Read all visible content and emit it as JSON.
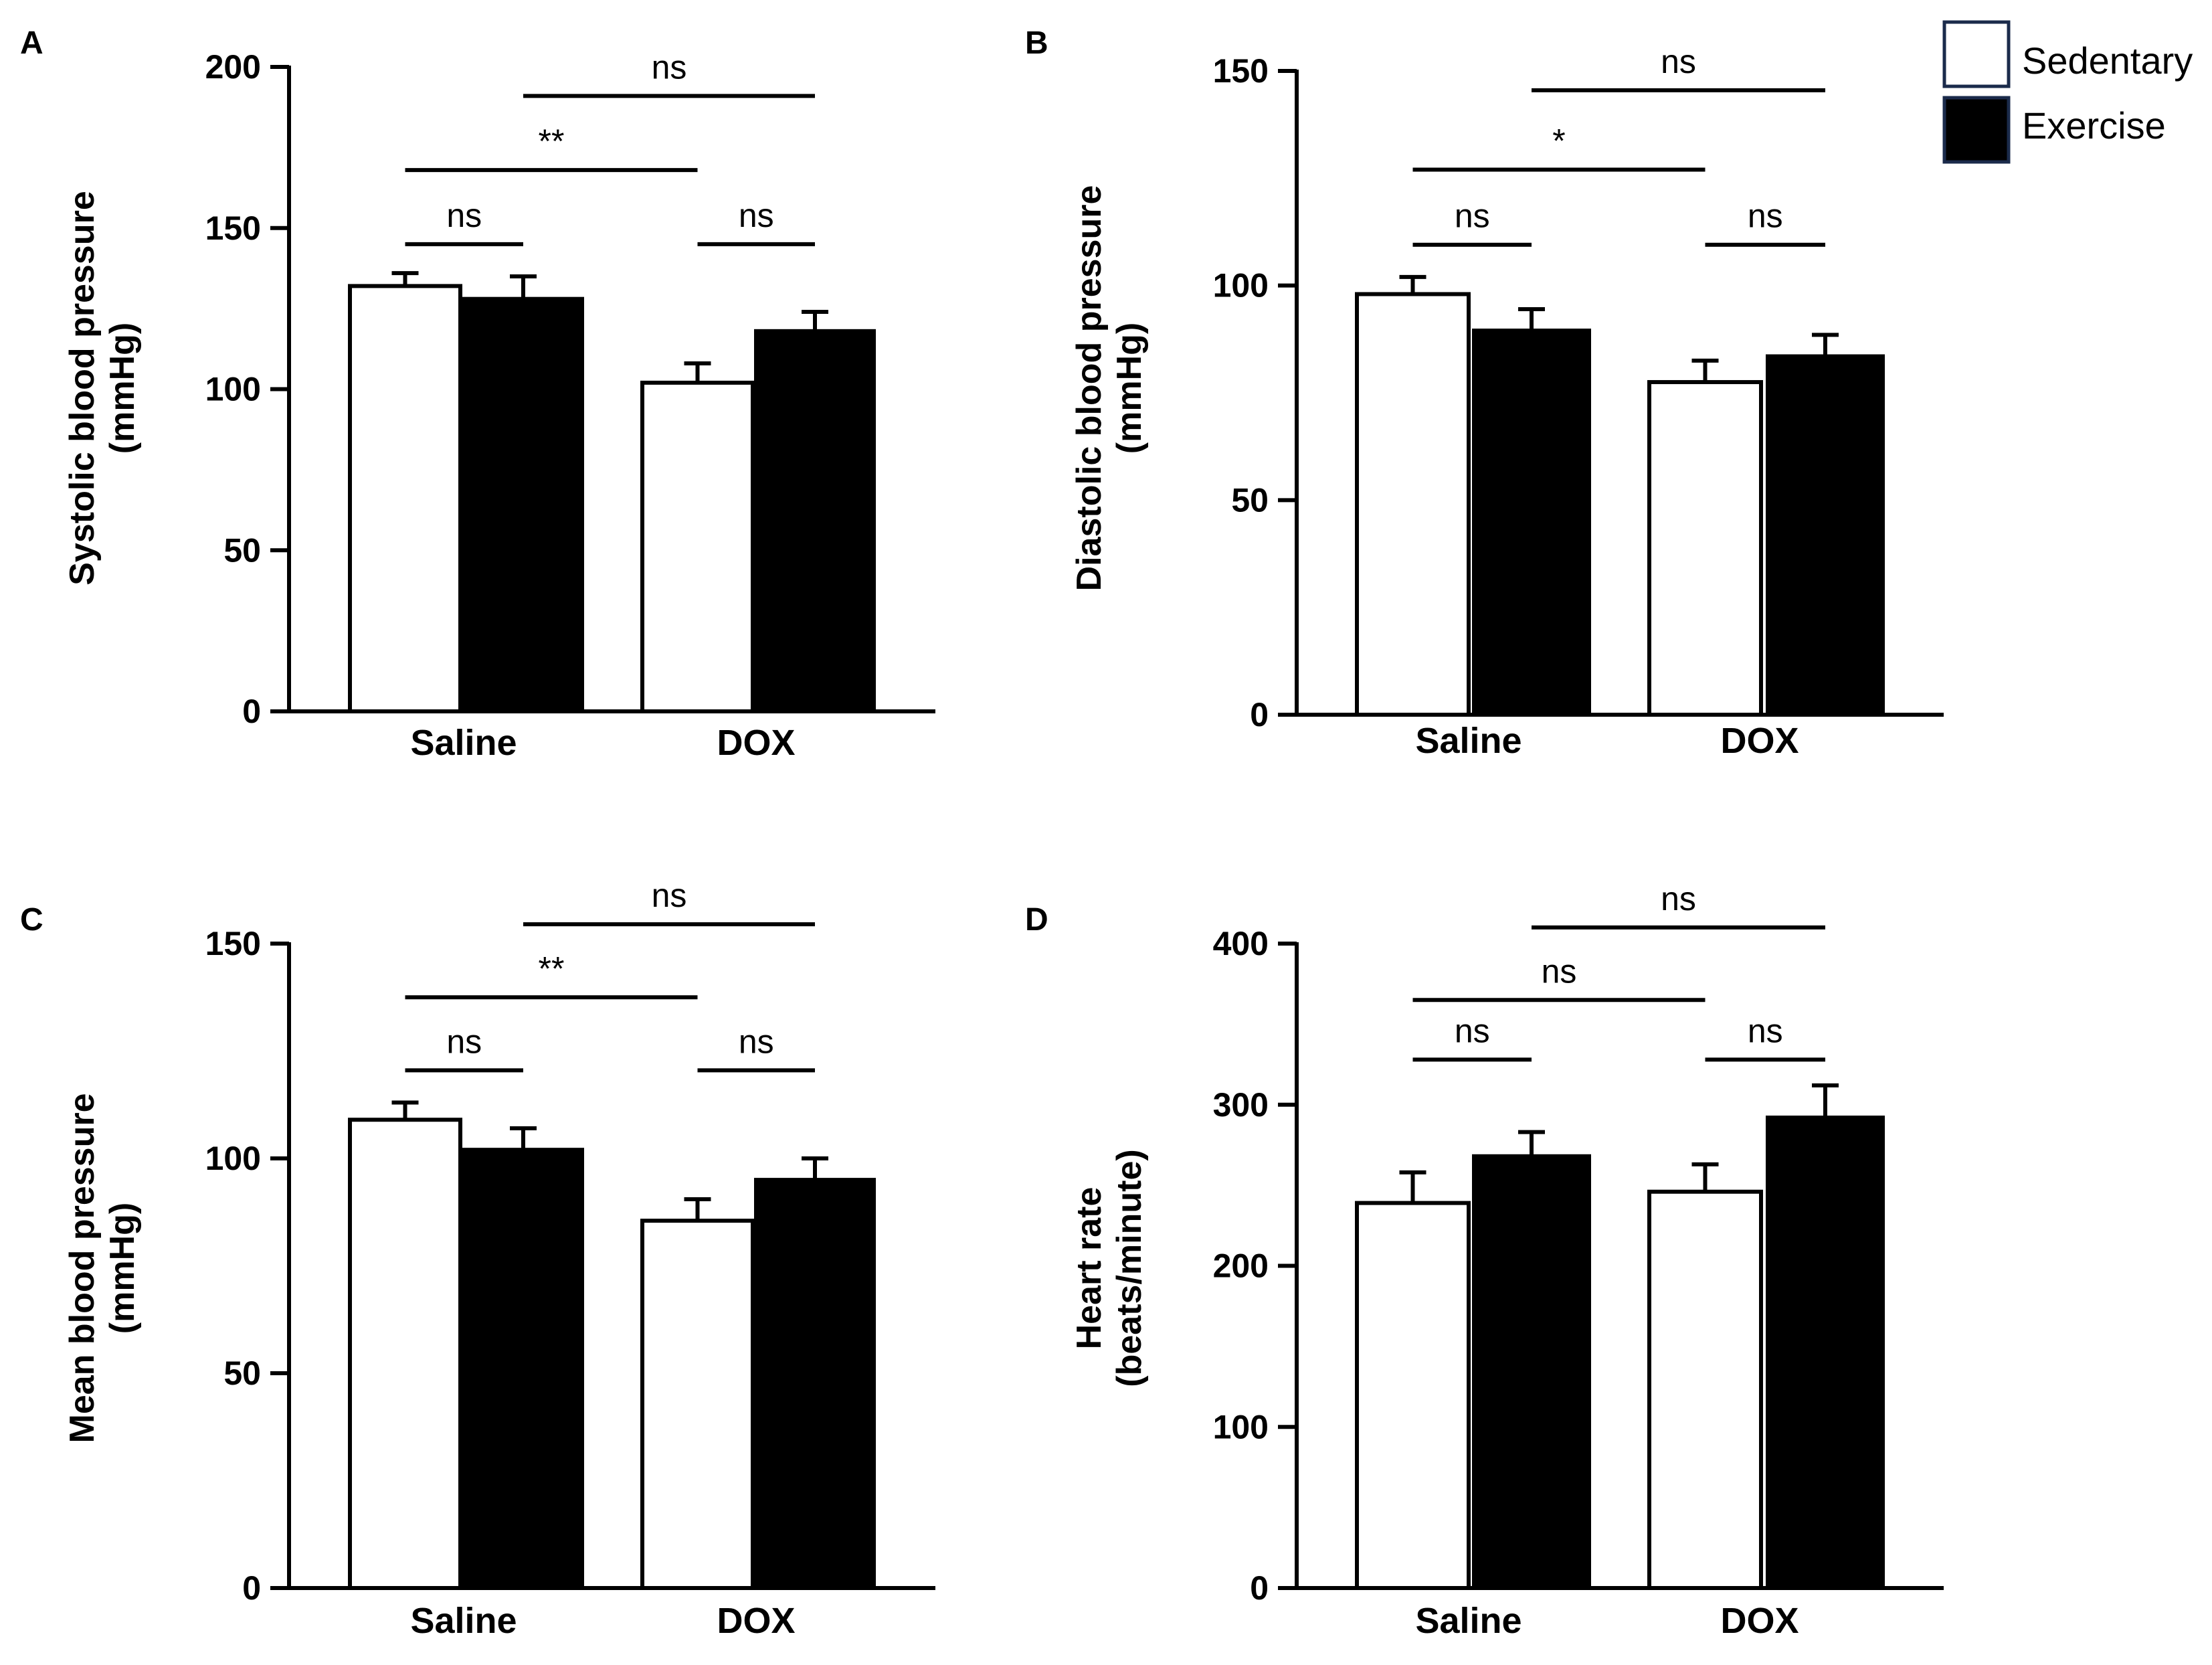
{
  "legend": {
    "entries": [
      {
        "label": "Sedentary",
        "fill": "#ffffff",
        "stroke": "#1b2b4b"
      },
      {
        "label": "Exercise",
        "fill": "#000000",
        "stroke": "#1b2b4b"
      }
    ]
  },
  "colors": {
    "sedentary": "#ffffff",
    "exercise": "#000000",
    "axis": "#000000"
  },
  "chart_data": [
    {
      "type": "bar",
      "panel": "A",
      "ylabel": [
        "Systolic blood pressure",
        "(mmHg)"
      ],
      "categories": [
        "Saline",
        "DOX"
      ],
      "ylim": [
        0,
        200
      ],
      "yticks": [
        0,
        50,
        100,
        150,
        200
      ],
      "series": [
        {
          "name": "Sedentary",
          "values": [
            132,
            102
          ],
          "errors": [
            4,
            6
          ]
        },
        {
          "name": "Exercise",
          "values": [
            128,
            118
          ],
          "errors": [
            7,
            6
          ]
        }
      ],
      "significance": [
        {
          "from": "Saline-Sedentary",
          "to": "Saline-Exercise",
          "label": "ns",
          "level": 145
        },
        {
          "from": "DOX-Sedentary",
          "to": "DOX-Exercise",
          "label": "ns",
          "level": 145
        },
        {
          "from": "Saline-Sedentary",
          "to": "DOX-Sedentary",
          "label": "**",
          "level": 168
        },
        {
          "from": "Saline-Exercise",
          "to": "DOX-Exercise",
          "label": "ns",
          "level": 191
        }
      ]
    },
    {
      "type": "bar",
      "panel": "B",
      "ylabel": [
        "Diastolic blood pressure",
        "(mmHg)"
      ],
      "categories": [
        "Saline",
        "DOX"
      ],
      "ylim": [
        0,
        150
      ],
      "yticks": [
        0,
        50,
        100,
        150
      ],
      "series": [
        {
          "name": "Sedentary",
          "values": [
            98,
            77.5
          ],
          "errors": [
            4,
            5
          ]
        },
        {
          "name": "Exercise",
          "values": [
            89.5,
            83.5
          ],
          "errors": [
            5,
            5
          ]
        }
      ],
      "significance": [
        {
          "from": "Saline-Sedentary",
          "to": "Saline-Exercise",
          "label": "ns",
          "level": 109.5
        },
        {
          "from": "DOX-Sedentary",
          "to": "DOX-Exercise",
          "label": "ns",
          "level": 109.5
        },
        {
          "from": "Saline-Sedentary",
          "to": "DOX-Sedentary",
          "label": "*",
          "level": 127
        },
        {
          "from": "Saline-Exercise",
          "to": "DOX-Exercise",
          "label": "ns",
          "level": 145.5
        }
      ]
    },
    {
      "type": "bar",
      "panel": "C",
      "ylabel": [
        "Mean blood pressure",
        "(mmHg)"
      ],
      "categories": [
        "Saline",
        "DOX"
      ],
      "ylim": [
        0,
        150
      ],
      "yticks": [
        0,
        50,
        100,
        150
      ],
      "series": [
        {
          "name": "Sedentary",
          "values": [
            109,
            85.5
          ],
          "errors": [
            4,
            5
          ]
        },
        {
          "name": "Exercise",
          "values": [
            102,
            95
          ],
          "errors": [
            5,
            5
          ]
        }
      ],
      "significance": [
        {
          "from": "Saline-Sedentary",
          "to": "Saline-Exercise",
          "label": "ns",
          "level": 120.5
        },
        {
          "from": "DOX-Sedentary",
          "to": "DOX-Exercise",
          "label": "ns",
          "level": 120.5
        },
        {
          "from": "Saline-Sedentary",
          "to": "DOX-Sedentary",
          "label": "**",
          "level": 137.5
        },
        {
          "from": "Saline-Exercise",
          "to": "DOX-Exercise",
          "label": "ns",
          "level": 154.5
        }
      ]
    },
    {
      "type": "bar",
      "panel": "D",
      "ylabel": [
        "Heart rate",
        "(beats/minute)"
      ],
      "categories": [
        "Saline",
        "DOX"
      ],
      "ylim": [
        0,
        400
      ],
      "yticks": [
        0,
        100,
        200,
        300,
        400
      ],
      "series": [
        {
          "name": "Sedentary",
          "values": [
            239,
            246
          ],
          "errors": [
            19,
            17
          ]
        },
        {
          "name": "Exercise",
          "values": [
            268,
            292
          ],
          "errors": [
            15,
            20
          ]
        }
      ],
      "significance": [
        {
          "from": "Saline-Sedentary",
          "to": "Saline-Exercise",
          "label": "ns",
          "level": 328
        },
        {
          "from": "DOX-Sedentary",
          "to": "DOX-Exercise",
          "label": "ns",
          "level": 328
        },
        {
          "from": "Saline-Sedentary",
          "to": "DOX-Sedentary",
          "label": "ns",
          "level": 365
        },
        {
          "from": "Saline-Exercise",
          "to": "DOX-Exercise",
          "label": "ns",
          "level": 410
        }
      ]
    }
  ]
}
